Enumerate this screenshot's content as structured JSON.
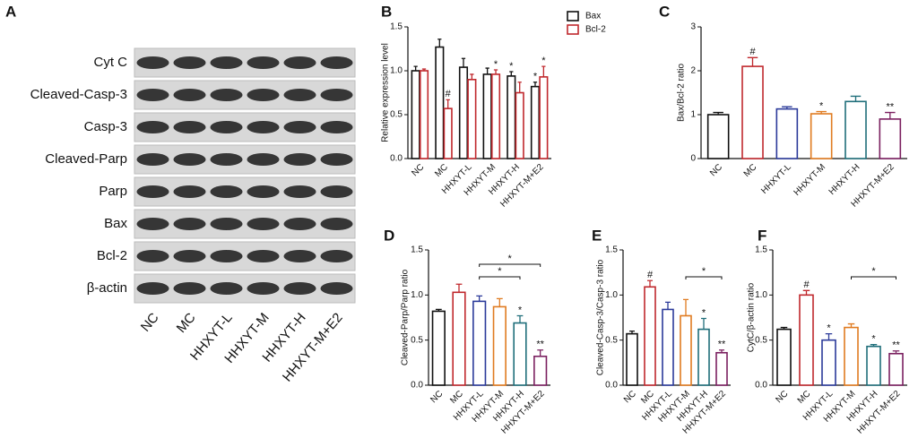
{
  "blot": {
    "panel": "A",
    "rows": [
      "Cyt C",
      "Cleaved-Casp-3",
      "Casp-3",
      "Cleaved-Parp",
      "Parp",
      "Bax",
      "Bcl-2",
      "β-actin"
    ],
    "lanes": [
      "NC",
      "MC",
      "HHXYT-L",
      "HHXYT-M",
      "HHXYT-H",
      "HHXYT-M+E2"
    ]
  },
  "chart_data": [
    {
      "type": "grouped-bar",
      "panel": "B",
      "y_label": "Relative expression level",
      "categories": [
        "NC",
        "MC",
        "HHXYT-L",
        "HHXYT-M",
        "HHXYT-H",
        "HHXYT-M+E2"
      ],
      "series": [
        {
          "name": "Bax",
          "color": "#111111",
          "values": [
            1.0,
            1.27,
            1.04,
            0.96,
            0.94,
            0.82
          ],
          "errors": [
            0.05,
            0.09,
            0.1,
            0.07,
            0.05,
            0.05
          ],
          "annotations": [
            null,
            null,
            null,
            null,
            "*",
            "*"
          ]
        },
        {
          "name": "Bcl-2",
          "color": "#c0282d",
          "values": [
            1.0,
            0.57,
            0.9,
            0.96,
            0.75,
            0.93
          ],
          "errors": [
            0.02,
            0.1,
            0.06,
            0.05,
            0.12,
            0.12
          ],
          "annotations": [
            null,
            "#",
            null,
            "*",
            null,
            "*"
          ]
        }
      ],
      "ylim": [
        0,
        1.5
      ],
      "yticks": [
        {
          "value": 0,
          "label": "0.0"
        },
        0.5,
        {
          "value": 1,
          "label": "1.0"
        },
        1.5
      ],
      "legend": "top-right"
    },
    {
      "type": "bar",
      "panel": "C",
      "y_label": "Bax/Bcl-2 ratio",
      "categories": [
        "NC",
        "MC",
        "HHXYT-L",
        "HHXYT-M",
        "HHXYT-H",
        "HHXYT-M+E2"
      ],
      "values": [
        1.0,
        2.1,
        1.13,
        1.02,
        1.3,
        0.9
      ],
      "errors": [
        0.05,
        0.2,
        0.05,
        0.05,
        0.12,
        0.15
      ],
      "annotations": [
        null,
        "#",
        null,
        "*",
        null,
        "**"
      ],
      "colors": [
        "#111111",
        "#c0282d",
        "#2b3a9a",
        "#e07b20",
        "#1f6e7a",
        "#7b2060"
      ],
      "ylim": [
        0,
        3
      ],
      "yticks": [
        0,
        1,
        2,
        3
      ]
    },
    {
      "type": "bar",
      "panel": "D",
      "y_label": "Cleaved-Parp/Parp ratio",
      "categories": [
        "NC",
        "MC",
        "HHXYT-L",
        "HHXYT-M",
        "HHXYT-H",
        "HHXYT-M+E2"
      ],
      "values": [
        0.82,
        1.03,
        0.93,
        0.87,
        0.69,
        0.32
      ],
      "errors": [
        0.02,
        0.09,
        0.06,
        0.09,
        0.08,
        0.07
      ],
      "annotations": [
        null,
        null,
        null,
        null,
        "*",
        "**"
      ],
      "comparisons": [
        {
          "groups": [
            "HHXYT-L",
            "HHXYT-H"
          ],
          "label": "*"
        },
        {
          "groups": [
            "HHXYT-L",
            "HHXYT-M+E2"
          ],
          "label": "*"
        }
      ],
      "colors": [
        "#111111",
        "#c0282d",
        "#2b3a9a",
        "#e07b20",
        "#1f6e7a",
        "#7b2060"
      ],
      "ylim": [
        0,
        1.5
      ],
      "yticks": [
        {
          "value": 0,
          "label": "0.0"
        },
        0.5,
        {
          "value": 1,
          "label": "1.0"
        },
        1.5
      ]
    },
    {
      "type": "bar",
      "panel": "E",
      "y_label": "Cleaved-Casp-3/Casp-3 ratio",
      "categories": [
        "NC",
        "MC",
        "HHXYT-L",
        "HHXYT-M",
        "HHXYT-H",
        "HHXYT-M+E2"
      ],
      "values": [
        0.57,
        1.09,
        0.84,
        0.77,
        0.62,
        0.36
      ],
      "errors": [
        0.03,
        0.07,
        0.08,
        0.18,
        0.12,
        0.03
      ],
      "annotations": [
        null,
        "#",
        null,
        null,
        "*",
        "**"
      ],
      "comparisons": [
        {
          "groups": [
            "HHXYT-M",
            "HHXYT-M+E2"
          ],
          "label": "*"
        }
      ],
      "colors": [
        "#111111",
        "#c0282d",
        "#2b3a9a",
        "#e07b20",
        "#1f6e7a",
        "#7b2060"
      ],
      "ylim": [
        0,
        1.5
      ],
      "yticks": [
        {
          "value": 0,
          "label": "0.0"
        },
        0.5,
        {
          "value": 1,
          "label": "1.0"
        },
        1.5
      ]
    },
    {
      "type": "bar",
      "panel": "F",
      "y_label": "CytC/β-actin ratio",
      "categories": [
        "NC",
        "MC",
        "HHXYT-L",
        "HHXYT-M",
        "HHXYT-H",
        "HHXYT-M+E2"
      ],
      "values": [
        0.62,
        1.0,
        0.5,
        0.64,
        0.43,
        0.35
      ],
      "errors": [
        0.02,
        0.05,
        0.07,
        0.04,
        0.02,
        0.03
      ],
      "annotations": [
        null,
        "#",
        "*",
        null,
        "*",
        "**"
      ],
      "comparisons": [
        {
          "groups": [
            "HHXYT-M",
            "HHXYT-M+E2"
          ],
          "label": "*"
        }
      ],
      "colors": [
        "#111111",
        "#c0282d",
        "#2b3a9a",
        "#e07b20",
        "#1f6e7a",
        "#7b2060"
      ],
      "ylim": [
        0,
        1.5
      ],
      "yticks": [
        {
          "value": 0,
          "label": "0.0"
        },
        0.5,
        {
          "value": 1,
          "label": "1.0"
        },
        1.5
      ]
    }
  ]
}
